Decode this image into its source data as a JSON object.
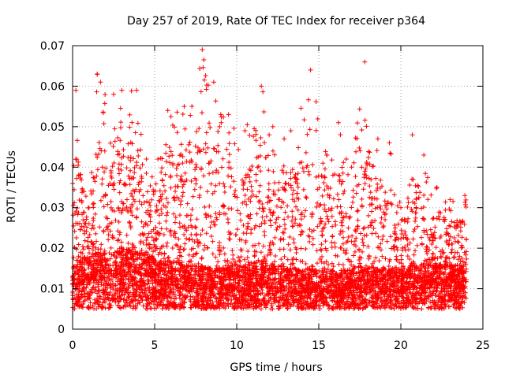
{
  "chart_data": {
    "type": "scatter",
    "title": "Day 257 of 2019, Rate Of TEC Index for receiver p364",
    "xlabel": "GPS time / hours",
    "ylabel": "ROTI / TECUs",
    "xlim": [
      0,
      25
    ],
    "ylim": [
      0,
      0.07
    ],
    "x_ticks": [
      0,
      5,
      10,
      15,
      20,
      25
    ],
    "x_tick_labels": [
      "0",
      "5",
      "10",
      "15",
      "20",
      "25"
    ],
    "y_ticks": [
      0,
      0.01,
      0.02,
      0.03,
      0.04,
      0.05,
      0.06,
      0.07
    ],
    "y_tick_labels": [
      "0",
      "0.01",
      "0.02",
      "0.03",
      "0.04",
      "0.05",
      "0.06",
      "0.07"
    ],
    "grid": true,
    "marker": "+",
    "color": "#ff0000",
    "series": [
      {
        "name": "ROTI",
        "x_range": [
          0,
          24
        ],
        "envelope": [
          {
            "x": 0.0,
            "base": 0.01,
            "peak": 0.036
          },
          {
            "x": 0.2,
            "base": 0.011,
            "peak": 0.059
          },
          {
            "x": 1.0,
            "base": 0.012,
            "peak": 0.03
          },
          {
            "x": 1.5,
            "base": 0.013,
            "peak": 0.063
          },
          {
            "x": 1.7,
            "base": 0.013,
            "peak": 0.061
          },
          {
            "x": 2.5,
            "base": 0.013,
            "peak": 0.058
          },
          {
            "x": 3.0,
            "base": 0.014,
            "peak": 0.059
          },
          {
            "x": 3.9,
            "base": 0.014,
            "peak": 0.059
          },
          {
            "x": 4.5,
            "base": 0.013,
            "peak": 0.042
          },
          {
            "x": 5.2,
            "base": 0.011,
            "peak": 0.042
          },
          {
            "x": 5.8,
            "base": 0.011,
            "peak": 0.054
          },
          {
            "x": 6.8,
            "base": 0.01,
            "peak": 0.055
          },
          {
            "x": 7.9,
            "base": 0.01,
            "peak": 0.069
          },
          {
            "x": 8.6,
            "base": 0.009,
            "peak": 0.061
          },
          {
            "x": 9.5,
            "base": 0.01,
            "peak": 0.053
          },
          {
            "x": 10.5,
            "base": 0.01,
            "peak": 0.049
          },
          {
            "x": 11.5,
            "base": 0.011,
            "peak": 0.06
          },
          {
            "x": 12.2,
            "base": 0.01,
            "peak": 0.05
          },
          {
            "x": 13.3,
            "base": 0.009,
            "peak": 0.049
          },
          {
            "x": 14.5,
            "base": 0.009,
            "peak": 0.064
          },
          {
            "x": 15.5,
            "base": 0.009,
            "peak": 0.043
          },
          {
            "x": 16.2,
            "base": 0.008,
            "peak": 0.051
          },
          {
            "x": 17.0,
            "base": 0.009,
            "peak": 0.04
          },
          {
            "x": 17.8,
            "base": 0.01,
            "peak": 0.066
          },
          {
            "x": 18.6,
            "base": 0.009,
            "peak": 0.047
          },
          {
            "x": 19.3,
            "base": 0.009,
            "peak": 0.046
          },
          {
            "x": 20.0,
            "base": 0.009,
            "peak": 0.03
          },
          {
            "x": 20.7,
            "base": 0.01,
            "peak": 0.048
          },
          {
            "x": 21.4,
            "base": 0.01,
            "peak": 0.043
          },
          {
            "x": 22.2,
            "base": 0.01,
            "peak": 0.035
          },
          {
            "x": 23.0,
            "base": 0.01,
            "peak": 0.032
          },
          {
            "x": 23.9,
            "base": 0.01,
            "peak": 0.033
          }
        ],
        "floor": 0.003
      }
    ]
  }
}
